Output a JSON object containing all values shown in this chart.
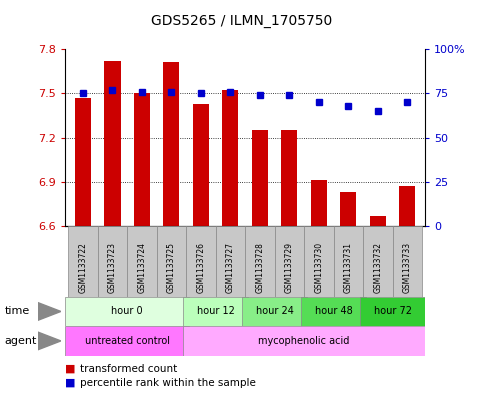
{
  "title": "GDS5265 / ILMN_1705750",
  "samples": [
    "GSM1133722",
    "GSM1133723",
    "GSM1133724",
    "GSM1133725",
    "GSM1133726",
    "GSM1133727",
    "GSM1133728",
    "GSM1133729",
    "GSM1133730",
    "GSM1133731",
    "GSM1133732",
    "GSM1133733"
  ],
  "bar_values": [
    7.47,
    7.72,
    7.5,
    7.71,
    7.43,
    7.52,
    7.25,
    7.25,
    6.91,
    6.83,
    6.67,
    6.87
  ],
  "dot_values": [
    75,
    77,
    76,
    76,
    75,
    76,
    74,
    74,
    70,
    68,
    65,
    70
  ],
  "bar_bottom": 6.6,
  "ylim_left": [
    6.6,
    7.8
  ],
  "ylim_right": [
    0,
    100
  ],
  "yticks_left": [
    6.6,
    6.9,
    7.2,
    7.5,
    7.8
  ],
  "yticks_right": [
    0,
    25,
    50,
    75,
    100
  ],
  "ytick_labels_right": [
    "0",
    "25",
    "50",
    "75",
    "100%"
  ],
  "bar_color": "#cc0000",
  "dot_color": "#0000cc",
  "time_groups": [
    {
      "label": "hour 0",
      "start": 0,
      "end": 4,
      "color": "#dfffdf"
    },
    {
      "label": "hour 12",
      "start": 4,
      "end": 6,
      "color": "#bbffbb"
    },
    {
      "label": "hour 24",
      "start": 6,
      "end": 8,
      "color": "#88ee88"
    },
    {
      "label": "hour 48",
      "start": 8,
      "end": 10,
      "color": "#55dd55"
    },
    {
      "label": "hour 72",
      "start": 10,
      "end": 12,
      "color": "#33cc33"
    }
  ],
  "agent_groups": [
    {
      "label": "untreated control",
      "start": 0,
      "end": 4,
      "color": "#ff77ff"
    },
    {
      "label": "mycophenolic acid",
      "start": 4,
      "end": 12,
      "color": "#ffaaff"
    }
  ],
  "legend_bar_label": "transformed count",
  "legend_dot_label": "percentile rank within the sample",
  "time_label": "time",
  "agent_label": "agent",
  "bar_axis_color": "#cc0000",
  "dot_axis_color": "#0000cc",
  "bg_color": "#ffffff",
  "sample_bg_color": "#c8c8c8",
  "grid_yticks": [
    6.9,
    7.2,
    7.5
  ]
}
